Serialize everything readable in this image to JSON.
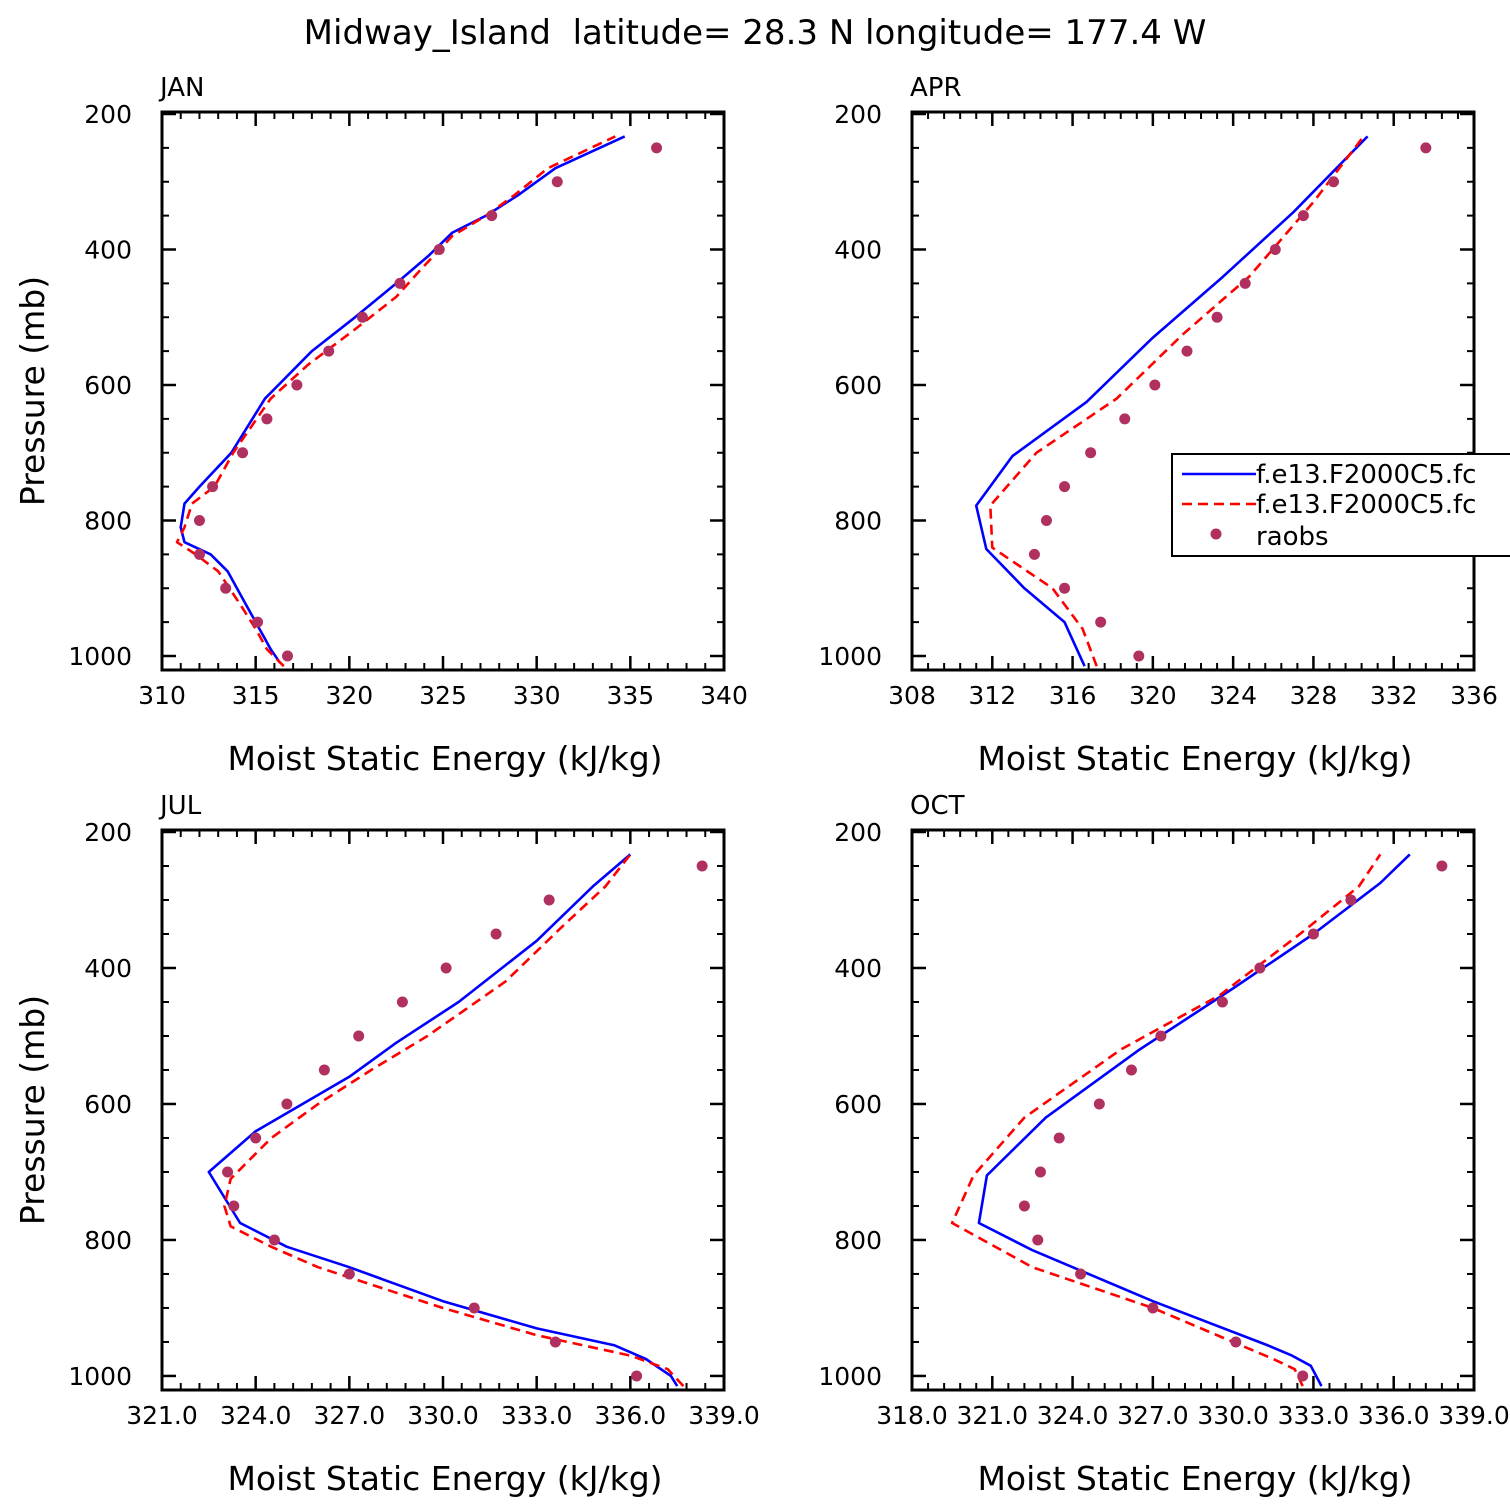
{
  "page_title": "Midway_Island  latitude= 28.3 N longitude= 177.4 W",
  "colors": {
    "model1": "#0000ff",
    "model2": "#ff0000",
    "raobs": "#b03060"
  },
  "chart_data": [
    {
      "type": "line",
      "title": "JAN",
      "xlabel": "Moist Static Energy (kJ/kg)",
      "ylabel": "Pressure (mb)",
      "xlim": [
        310,
        340
      ],
      "xticks": [
        310,
        315,
        320,
        325,
        330,
        335,
        340
      ],
      "xtick_labels": [
        "310",
        "315",
        "320",
        "325",
        "330",
        "335",
        "340"
      ],
      "ylim": [
        1000,
        200
      ],
      "yticks": [
        200,
        400,
        600,
        800,
        1000
      ],
      "ytick_labels": [
        "200",
        "400",
        "600",
        "800",
        "1000"
      ],
      "grid": false,
      "series": [
        {
          "style": "solid",
          "color": "#0000ff",
          "x": [
            316.3,
            315.8,
            315.0,
            314.5,
            313.5,
            312.6,
            311.2,
            311.0,
            311.2,
            312.0,
            313.7,
            315.5,
            318.0,
            320.3,
            322.5,
            324.2,
            325.5,
            327.3,
            329.0,
            331.0,
            334.7
          ],
          "y": [
            1010,
            990,
            950,
            925,
            875,
            850,
            832,
            810,
            775,
            750,
            700,
            620,
            550,
            500,
            450,
            410,
            375,
            350,
            320,
            280,
            233
          ]
        },
        {
          "style": "dashed",
          "color": "#ff0000",
          "x": [
            316.5,
            315.6,
            315.0,
            314.2,
            313.0,
            311.8,
            310.8,
            311.2,
            311.6,
            312.8,
            313.8,
            315.8,
            317.8,
            320.2,
            322.5,
            323.8,
            325.5,
            327.3,
            328.8,
            330.6,
            334.2
          ],
          "y": [
            1015,
            990,
            960,
            925,
            875,
            850,
            832,
            810,
            775,
            750,
            700,
            620,
            570,
            520,
            470,
            430,
            380,
            350,
            320,
            280,
            233
          ]
        }
      ],
      "points": {
        "x": [
          316.7,
          315.1,
          313.4,
          312.0,
          312.0,
          312.7,
          314.3,
          315.6,
          317.2,
          318.9,
          320.7,
          322.7,
          324.8,
          327.6,
          331.1,
          336.4
        ],
        "y": [
          1000,
          950,
          900,
          850,
          800,
          750,
          700,
          650,
          600,
          550,
          500,
          450,
          400,
          350,
          300,
          250
        ]
      },
      "legend": false
    },
    {
      "type": "line",
      "title": "APR",
      "xlabel": "Moist Static Energy (kJ/kg)",
      "ylabel": "",
      "xlim": [
        308,
        336
      ],
      "xticks": [
        308,
        312,
        316,
        320,
        324,
        328,
        332,
        336
      ],
      "xtick_labels": [
        "308",
        "312",
        "316",
        "320",
        "324",
        "328",
        "332",
        "336"
      ],
      "ylim": [
        1000,
        200
      ],
      "yticks": [
        200,
        400,
        600,
        800,
        1000
      ],
      "ytick_labels": [
        "200",
        "400",
        "600",
        "800",
        "1000"
      ],
      "grid": false,
      "series": [
        {
          "style": "solid",
          "color": "#0000ff",
          "x": [
            316.6,
            315.6,
            313.6,
            311.7,
            311.2,
            313.0,
            316.7,
            320.0,
            323.5,
            327.0,
            330.7
          ],
          "y": [
            1015,
            950,
            900,
            842,
            778,
            705,
            625,
            530,
            440,
            345,
            233
          ]
        },
        {
          "style": "dashed",
          "color": "#ff0000",
          "x": [
            317.2,
            316.5,
            315.0,
            312.0,
            311.9,
            314.2,
            318.2,
            321.5,
            324.8,
            328.0,
            330.5
          ],
          "y": [
            1015,
            960,
            900,
            840,
            778,
            700,
            620,
            525,
            440,
            330,
            233
          ]
        }
      ],
      "points": {
        "x": [
          319.3,
          317.4,
          315.6,
          314.1,
          314.7,
          315.6,
          316.9,
          318.6,
          320.1,
          321.7,
          323.2,
          324.6,
          326.1,
          327.5,
          329.0,
          333.6
        ],
        "y": [
          1000,
          950,
          900,
          850,
          800,
          750,
          700,
          650,
          600,
          550,
          500,
          450,
          400,
          350,
          300,
          250
        ]
      },
      "legend": true,
      "legend_entries": [
        "f.e13.F2000C5.fc",
        "f.e13.F2000C5.fc",
        "raobs"
      ]
    },
    {
      "type": "line",
      "title": "JUL",
      "xlabel": "Moist Static Energy (kJ/kg)",
      "ylabel": "Pressure (mb)",
      "xlim": [
        321,
        339
      ],
      "xticks": [
        321,
        324,
        327,
        330,
        333,
        336,
        339
      ],
      "xtick_labels": [
        "321.0",
        "324.0",
        "327.0",
        "330.0",
        "333.0",
        "336.0",
        "339.0"
      ],
      "ylim": [
        1000,
        200
      ],
      "yticks": [
        200,
        400,
        600,
        800,
        1000
      ],
      "ytick_labels": [
        "200",
        "400",
        "600",
        "800",
        "1000"
      ],
      "grid": false,
      "series": [
        {
          "style": "solid",
          "color": "#0000ff",
          "x": [
            337.5,
            337.3,
            336.5,
            335.5,
            333.0,
            330.0,
            327.0,
            325.0,
            323.5,
            322.5,
            324.0,
            325.5,
            327.0,
            328.5,
            330.5,
            333.0,
            334.8,
            336.0
          ],
          "y": [
            1015,
            1000,
            975,
            955,
            930,
            890,
            840,
            810,
            775,
            700,
            640,
            600,
            560,
            510,
            450,
            360,
            280,
            233
          ]
        },
        {
          "style": "dashed",
          "color": "#ff0000",
          "x": [
            337.7,
            337.2,
            336.0,
            333.0,
            330.0,
            326.0,
            324.5,
            323.2,
            323.0,
            323.2,
            324.5,
            326.0,
            327.7,
            329.5,
            332.0,
            333.8,
            335.2,
            336.0
          ],
          "y": [
            1015,
            990,
            970,
            940,
            900,
            840,
            810,
            780,
            750,
            710,
            650,
            600,
            550,
            500,
            420,
            340,
            280,
            233
          ]
        }
      ],
      "points": {
        "x": [
          336.2,
          333.6,
          331.0,
          327.0,
          324.6,
          323.3,
          323.1,
          324.0,
          325.0,
          326.2,
          327.3,
          328.7,
          330.1,
          331.7,
          333.4,
          338.3
        ],
        "y": [
          1000,
          950,
          900,
          850,
          800,
          750,
          700,
          650,
          600,
          550,
          500,
          450,
          400,
          350,
          300,
          250
        ]
      },
      "legend": false
    },
    {
      "type": "line",
      "title": "OCT",
      "xlabel": "Moist Static Energy (kJ/kg)",
      "ylabel": "",
      "xlim": [
        318,
        339
      ],
      "xticks": [
        318,
        321,
        324,
        327,
        330,
        333,
        336,
        339
      ],
      "xtick_labels": [
        "318.0",
        "321.0",
        "324.0",
        "327.0",
        "330.0",
        "333.0",
        "336.0",
        "339.0"
      ],
      "ylim": [
        1000,
        200
      ],
      "yticks": [
        200,
        400,
        600,
        800,
        1000
      ],
      "ytick_labels": [
        "200",
        "400",
        "600",
        "800",
        "1000"
      ],
      "grid": false,
      "series": [
        {
          "style": "solid",
          "color": "#0000ff",
          "x": [
            333.3,
            332.9,
            332.2,
            331.3,
            327.0,
            324.0,
            322.5,
            320.5,
            320.8,
            323.0,
            326.5,
            330.0,
            333.0,
            335.5,
            336.6
          ],
          "y": [
            1015,
            985,
            970,
            955,
            890,
            840,
            815,
            775,
            705,
            620,
            520,
            430,
            350,
            275,
            233
          ]
        },
        {
          "style": "dashed",
          "color": "#ff0000",
          "x": [
            332.6,
            332.3,
            331.5,
            330.0,
            327.0,
            322.5,
            319.5,
            320.3,
            322.2,
            325.8,
            329.5,
            332.5,
            334.7,
            335.5
          ],
          "y": [
            1015,
            990,
            975,
            950,
            900,
            840,
            775,
            705,
            620,
            520,
            440,
            350,
            280,
            233
          ]
        }
      ],
      "points": {
        "x": [
          332.6,
          330.1,
          327.0,
          324.3,
          322.7,
          322.2,
          322.8,
          323.5,
          325.0,
          326.2,
          327.3,
          329.6,
          331.0,
          333.0,
          334.4,
          337.8
        ],
        "y": [
          1000,
          950,
          900,
          850,
          800,
          750,
          700,
          650,
          600,
          550,
          500,
          450,
          400,
          350,
          300,
          250
        ]
      },
      "legend": false
    }
  ]
}
